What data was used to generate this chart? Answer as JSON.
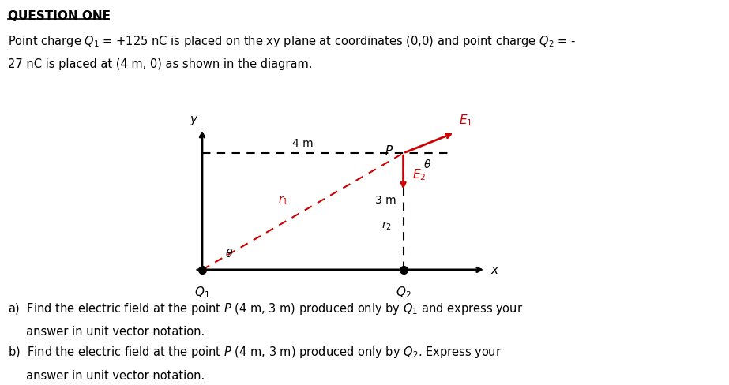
{
  "title": "QUESTION ONE",
  "line1": "Point charge $Q_1$ = +125 nC is placed on the xy plane at coordinates (0,0) and point charge $Q_2$ = -",
  "line2": "27 nC is placed at (4 m, 0) as shown in the diagram.",
  "q1_label": "$Q_1$",
  "q2_label": "$Q_2$",
  "y_label": "y",
  "x_label": "x",
  "p_label": "P",
  "E1_label": "$E_1$",
  "E2_label": "$E_2$",
  "r1_label": "$r_1$",
  "r2_label": "$r_2$",
  "theta_label_bottom": "$\\theta$",
  "theta_label_top": "$\\theta$",
  "four_m_label": "4 m",
  "three_m_label": "3 m",
  "bg_color": "#ffffff",
  "text_color": "#000000",
  "red_color": "#cc0000",
  "part_a": "a)  Find the electric field at the point $P$ (4 m, 3 m) produced only by $Q_1$ and express your",
  "part_a2": "     answer in unit vector notation.",
  "part_b": "b)  Find the electric field at the point $P$ (4 m, 3 m) produced only by $Q_2$. Express your",
  "part_b2": "     answer in unit vector notation."
}
